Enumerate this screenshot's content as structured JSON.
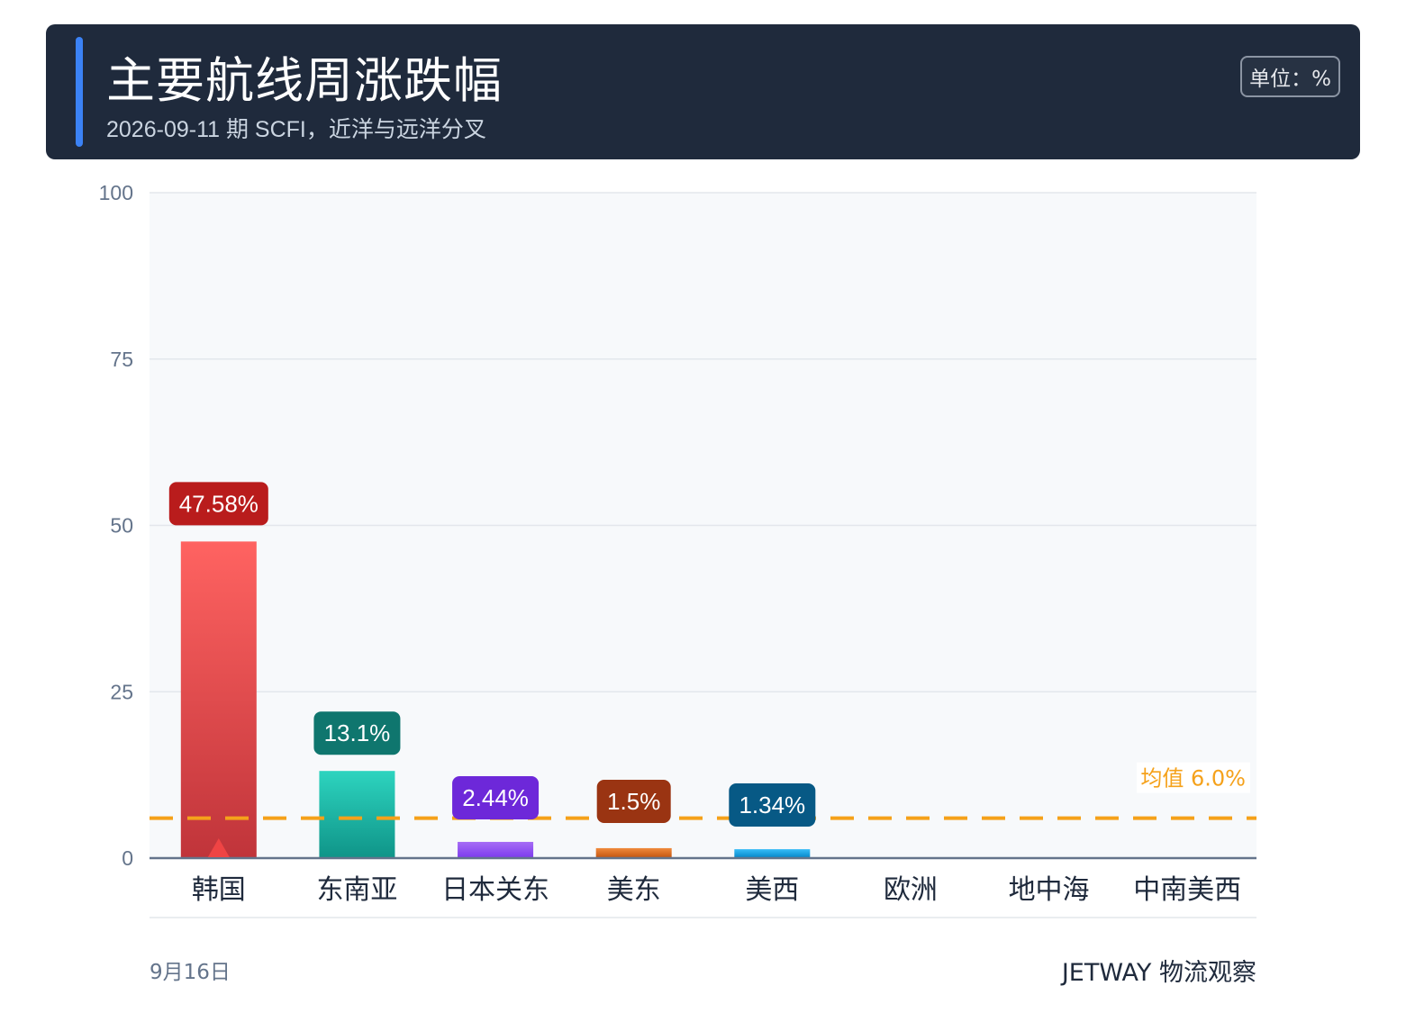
{
  "header": {
    "title": "主要航线周涨跌幅",
    "subtitle": "2026-09-11 期 SCFI，近洋与远洋分叉",
    "unit": "单位：%"
  },
  "chart_data": {
    "type": "bar",
    "categories": [
      "韩国",
      "东南亚",
      "日本关东",
      "美东",
      "美西",
      "欧洲",
      "地中海",
      "中南美西"
    ],
    "values": [
      47.58,
      13.1,
      2.44,
      1.5,
      1.34,
      null,
      null,
      null
    ],
    "value_labels": [
      "47.58%",
      "13.1%",
      "2.44%",
      "1.5%",
      "1.34%",
      "",
      "",
      ""
    ],
    "bar_colors": [
      [
        "#ff6361",
        "#c0343a"
      ],
      [
        "#2dd4bf",
        "#0f9488"
      ],
      [
        "#a66cf5",
        "#7c3aed"
      ],
      [
        "#f08a3c",
        "#c2530f"
      ],
      [
        "#38bdf8",
        "#0284c7"
      ],
      null,
      null,
      null
    ],
    "label_colors": [
      "#b91c1c",
      "#0f766e",
      "#6d28d9",
      "#9a3412",
      "#075985",
      null,
      null,
      null
    ],
    "marker_color": "#ef4444",
    "yticks": [
      0,
      25,
      50,
      75,
      100
    ],
    "ylim": [
      0,
      100
    ],
    "grid": true,
    "average": {
      "value": 6.0,
      "label": "均值 6.0%",
      "color": "#f5a11a"
    }
  },
  "footer": {
    "date": "9月16日",
    "brand": "JETWAY 物流观察"
  }
}
